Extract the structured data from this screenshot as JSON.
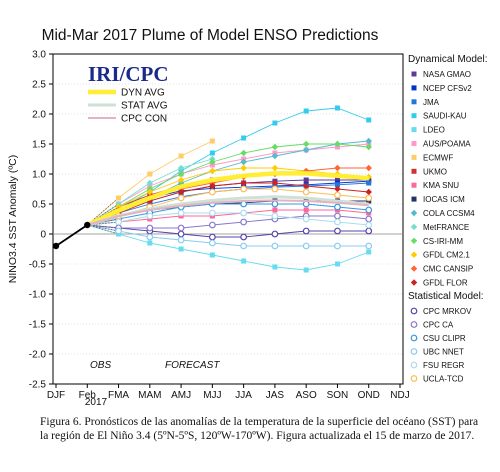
{
  "chart_data": {
    "type": "line",
    "title": "Mid-Mar 2017 Plume of Model ENSO Predictions",
    "ylabel": "NINO3.4 SST Anomaly (ºC)",
    "xlabel": "",
    "categories": [
      "DJF",
      "Feb",
      "FMA",
      "MAM",
      "AMJ",
      "MJJ",
      "JJA",
      "JAS",
      "ASO",
      "SON",
      "OND",
      "NDJ"
    ],
    "year_label": "2017",
    "ylim": [
      -2.5,
      3.0
    ],
    "yticks": [
      -2.5,
      -2.0,
      -1.5,
      -1.0,
      -0.5,
      0.0,
      0.5,
      1.0,
      1.5,
      2.0,
      2.5,
      3.0
    ],
    "ytick_labels": [
      "-2.5",
      "-2.0",
      "-1.5",
      "-1.0",
      "-0.5",
      "0",
      "0.5",
      "1.0",
      "1.5",
      "2.0",
      "2.5",
      "3.0"
    ],
    "logo": "IRI/CPC",
    "period_labels": {
      "obs": "OBS",
      "forecast": "FORECAST"
    },
    "observed": {
      "x": [
        "DJF",
        "Feb"
      ],
      "values": [
        -0.2,
        0.15
      ]
    },
    "averages": [
      {
        "name": "DYN AVG",
        "color": "#ffee33",
        "values": [
          0.15,
          0.39,
          0.6,
          0.79,
          0.9,
          0.97,
          1.01,
          1.01,
          0.97,
          0.93
        ]
      },
      {
        "name": "STAT AVG",
        "color": "#cfe0d6",
        "values": [
          0.15,
          0.3,
          0.42,
          0.5,
          0.56,
          0.6,
          0.62,
          0.6,
          0.55,
          0.5
        ]
      },
      {
        "name": "CPC CON",
        "color": "#e5b3bf",
        "values": [
          0.15,
          0.3,
          0.4,
          0.47,
          0.52,
          0.55,
          0.56,
          0.55,
          0.52,
          0.48
        ]
      }
    ],
    "legend_dynamical_title": "Dynamical Model:",
    "legend_statistical_title": "Statistical Model:",
    "dynamical_models": [
      {
        "name": "NASA GMAO",
        "color": "#5b3a9b",
        "marker": "square",
        "values": [
          0.15,
          0.35,
          0.55,
          0.7,
          0.8,
          0.85,
          0.88,
          0.9,
          0.9,
          0.9
        ]
      },
      {
        "name": "NCEP CFSv2",
        "color": "#0033cc",
        "marker": "square",
        "values": [
          0.15,
          0.4,
          0.6,
          0.72,
          0.76,
          0.78,
          0.8,
          0.82,
          0.85,
          0.88
        ]
      },
      {
        "name": "JMA",
        "color": "#2277dd",
        "marker": "square",
        "values": [
          0.15,
          0.35,
          0.5,
          0.62,
          0.7,
          0.75,
          0.78,
          0.8,
          0.82,
          0.85
        ]
      },
      {
        "name": "SAUDI-KAU",
        "color": "#33ccee",
        "marker": "square",
        "values": [
          0.15,
          0.4,
          0.7,
          1.05,
          1.35,
          1.6,
          1.85,
          2.05,
          2.1,
          1.9
        ]
      },
      {
        "name": "LDEO",
        "color": "#66ddee",
        "marker": "square",
        "values": [
          0.15,
          0.0,
          -0.15,
          -0.25,
          -0.35,
          -0.45,
          -0.55,
          -0.6,
          -0.5,
          -0.3
        ]
      },
      {
        "name": "AUS/POAMA",
        "color": "#ff99cc",
        "marker": "square",
        "values": [
          0.15,
          0.5,
          0.8,
          1.0,
          1.15,
          1.25,
          1.35,
          1.4,
          1.45,
          1.5
        ]
      },
      {
        "name": "ECMWF",
        "color": "#ffcc66",
        "marker": "square",
        "values": [
          0.15,
          0.6,
          1.0,
          1.3,
          1.55
        ]
      },
      {
        "name": "UKMO",
        "color": "#cc3333",
        "marker": "square",
        "values": [
          0.15,
          0.45,
          0.65,
          0.8,
          0.9
        ]
      },
      {
        "name": "KMA SNU",
        "color": "#ff6699",
        "marker": "square",
        "values": [
          0.15,
          0.2,
          0.25,
          0.3,
          0.3,
          0.35,
          0.4,
          0.4,
          0.4,
          0.35
        ]
      },
      {
        "name": "IOCAS ICM",
        "color": "#223366",
        "marker": "square",
        "values": [
          0.15,
          0.3,
          0.4,
          0.45,
          0.5,
          0.52,
          0.55,
          0.55,
          0.55,
          0.55
        ]
      },
      {
        "name": "COLA CCSM4",
        "color": "#55bbcc",
        "marker": "diamond",
        "values": [
          0.15,
          0.35,
          0.6,
          0.85,
          1.05,
          1.2,
          1.3,
          1.4,
          1.5,
          1.55
        ]
      },
      {
        "name": "MetFRANCE",
        "color": "#77ddcc",
        "marker": "diamond",
        "values": [
          0.15,
          0.5,
          0.85,
          1.1,
          1.25
        ]
      },
      {
        "name": "CS-IRI-MM",
        "color": "#66dd66",
        "marker": "diamond",
        "values": [
          0.15,
          0.45,
          0.75,
          1.0,
          1.2,
          1.35,
          1.45,
          1.5,
          1.5,
          1.45
        ]
      },
      {
        "name": "GFDL CM2.1",
        "color": "#ffcc00",
        "marker": "diamond",
        "values": [
          0.15,
          0.45,
          0.7,
          0.9,
          1.05,
          1.1,
          1.1,
          1.05,
          1.0,
          0.95
        ]
      },
      {
        "name": "CMC CANSIP",
        "color": "#ff6633",
        "marker": "diamond",
        "values": [
          0.15,
          0.4,
          0.6,
          0.75,
          0.85,
          0.95,
          1.0,
          1.05,
          1.1,
          1.1
        ]
      },
      {
        "name": "GFDL FLOR",
        "color": "#cc2222",
        "marker": "diamond",
        "values": [
          0.15,
          0.35,
          0.55,
          0.7,
          0.8,
          0.85,
          0.85,
          0.8,
          0.75,
          0.7
        ]
      }
    ],
    "statistical_models": [
      {
        "name": "CPC MRKOV",
        "color": "#5544aa",
        "marker": "circle",
        "values": [
          0.15,
          0.1,
          0.05,
          0.0,
          -0.05,
          -0.05,
          0.0,
          0.05,
          0.05,
          0.05
        ]
      },
      {
        "name": "CPC CA",
        "color": "#8877cc",
        "marker": "circle",
        "values": [
          0.15,
          0.1,
          0.1,
          0.1,
          0.15,
          0.2,
          0.25,
          0.3,
          0.3,
          0.25
        ]
      },
      {
        "name": "CSU CLIPR",
        "color": "#3399dd",
        "marker": "circle",
        "values": [
          0.15,
          0.25,
          0.35,
          0.45,
          0.5,
          0.5,
          0.5,
          0.5,
          0.45,
          0.4
        ]
      },
      {
        "name": "UBC NNET",
        "color": "#88ccee",
        "marker": "circle",
        "values": [
          0.15,
          0.05,
          -0.05,
          -0.1,
          -0.15,
          -0.2,
          -0.2,
          -0.2,
          -0.2,
          -0.2
        ]
      },
      {
        "name": "FSU REGR",
        "color": "#aaddee",
        "marker": "circle",
        "values": [
          0.15,
          0.2,
          0.3,
          0.35,
          0.35,
          0.35,
          0.3,
          0.25,
          0.2,
          0.15
        ]
      },
      {
        "name": "UCLA-TCD",
        "color": "#ffbb55",
        "marker": "circle",
        "values": [
          0.15,
          0.3,
          0.45,
          0.6,
          0.7,
          0.75,
          0.75,
          0.7,
          0.65,
          0.6
        ]
      }
    ]
  },
  "caption": "Figura 6. Pronósticos de las anomalías de la temperatura de la superficie del océano (SST) para la región de El Niño 3.4 (5ºN-5ºS, 120ºW-170ºW). Figura actualizada el 15 de marzo de 2017."
}
